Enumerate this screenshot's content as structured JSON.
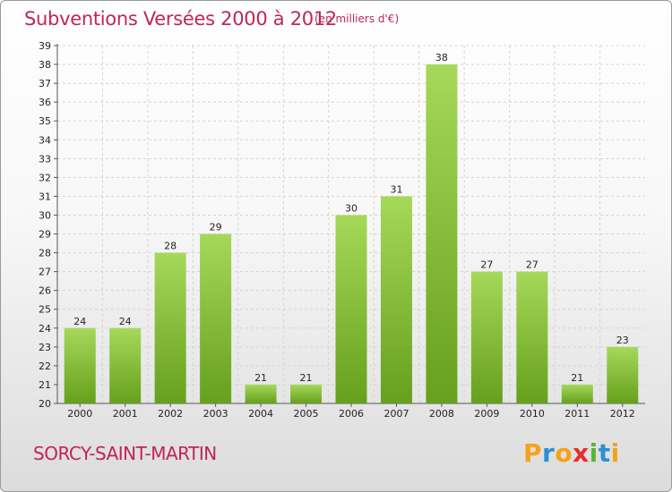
{
  "header": {
    "title": "Subventions Versées 2000 à 2012",
    "unit": "(en milliers d'€)"
  },
  "footer": {
    "commune": "SORCY-SAINT-MARTIN",
    "logo_letters": [
      "P",
      "r",
      "o",
      "x",
      "i",
      "t",
      "i"
    ],
    "logo_colors": [
      "#f5a21b",
      "#2e8fd6",
      "#f5a21b",
      "#e52d2d",
      "#5cb531",
      "#2e8fd6",
      "#f5a21b"
    ]
  },
  "colors": {
    "bar_light": "#a6d85a",
    "bar_dark": "#66a01c",
    "text_accent": "#c0245a"
  },
  "chart_data": {
    "type": "bar",
    "categories": [
      "2000",
      "2001",
      "2002",
      "2003",
      "2004",
      "2005",
      "2006",
      "2007",
      "2008",
      "2009",
      "2010",
      "2011",
      "2012"
    ],
    "values": [
      24,
      24,
      28,
      29,
      21,
      21,
      30,
      31,
      38,
      27,
      27,
      21,
      23
    ],
    "ylim": [
      20,
      39
    ],
    "yticks": [
      20,
      21,
      22,
      23,
      24,
      25,
      26,
      27,
      28,
      29,
      30,
      31,
      32,
      33,
      34,
      35,
      36,
      37,
      38,
      39
    ],
    "grid": true,
    "legend": "none"
  }
}
